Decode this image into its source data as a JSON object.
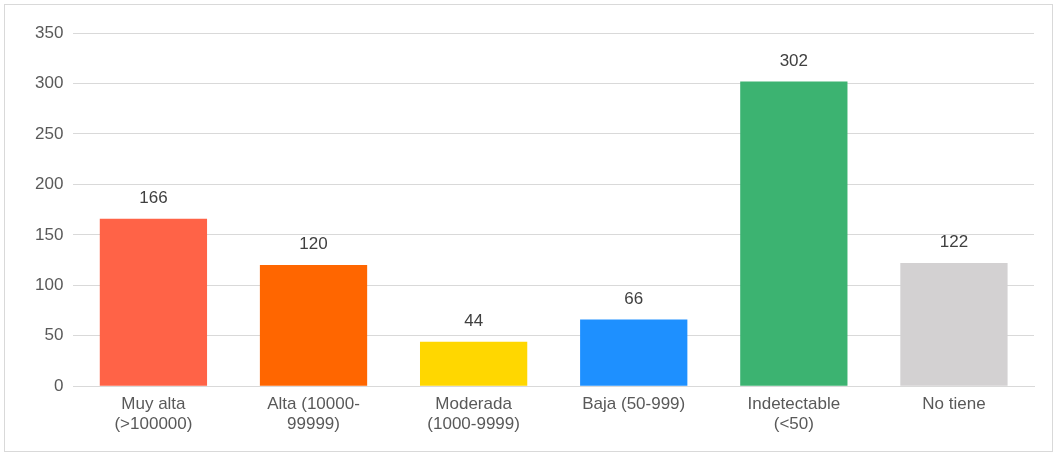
{
  "chart_data": {
    "type": "bar",
    "categories": [
      "Muy alta (>100000)",
      "Alta (10000-99999)",
      "Moderada (1000-9999)",
      "Baja (50-999)",
      "Indetectable (<50)",
      "No tiene"
    ],
    "values": [
      166,
      120,
      44,
      66,
      302,
      122
    ],
    "colors": [
      "#ff6347",
      "#ff6600",
      "#ffd700",
      "#1e90ff",
      "#3cb371",
      "#d3d1d2"
    ],
    "ylim": [
      0,
      350
    ],
    "yticks": [
      0,
      50,
      100,
      150,
      200,
      250,
      300,
      350
    ],
    "grid": "y",
    "legend": false,
    "data_labels": true
  }
}
